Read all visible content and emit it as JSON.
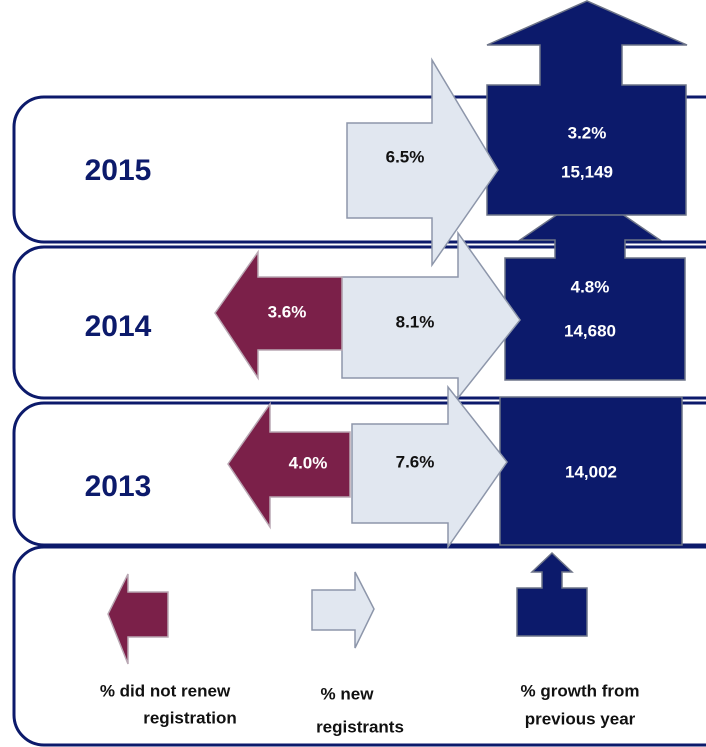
{
  "rows": [
    {
      "year": "2015",
      "new": "6.5%",
      "growth": "3.2%",
      "total": "15,149"
    },
    {
      "year": "2014",
      "did_not_renew": "3.6%",
      "new": "8.1%",
      "growth": "4.8%",
      "total": "14,680"
    },
    {
      "year": "2013",
      "did_not_renew": "4.0%",
      "new": "7.6%",
      "total": "14,002"
    }
  ],
  "legend": {
    "did_not_renew": [
      "% did not renew",
      "registration"
    ],
    "new": [
      "% new",
      "registrants"
    ],
    "growth": [
      "% growth from",
      "previous year"
    ]
  }
}
